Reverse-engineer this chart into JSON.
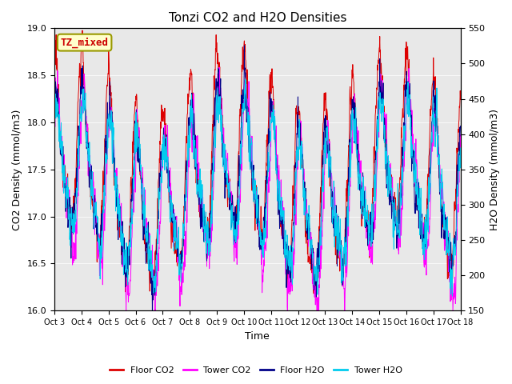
{
  "title": "Tonzi CO2 and H2O Densities",
  "xlabel": "Time",
  "ylabel_left": "CO2 Density (mmol/m3)",
  "ylabel_right": "H2O Density (mmol/m3)",
  "ylim_left": [
    16.0,
    19.0
  ],
  "ylim_right": [
    150,
    550
  ],
  "xtick_labels": [
    "Oct 3",
    "Oct 4",
    "Oct 5",
    "Oct 6",
    "Oct 7",
    "Oct 8",
    "Oct 9",
    "Oct 10",
    "Oct 11",
    "Oct 12",
    "Oct 13",
    "Oct 14",
    "Oct 15",
    "Oct 16",
    "Oct 17",
    "Oct 18"
  ],
  "annotation_text": "TZ_mixed",
  "annotation_fgcolor": "#cc0000",
  "annotation_bgcolor": "#ffffcc",
  "annotation_edgecolor": "#999900",
  "floor_co2_color": "#dd0000",
  "tower_co2_color": "#ff00ff",
  "floor_h2o_color": "#000088",
  "tower_h2o_color": "#00ccee",
  "legend_labels": [
    "Floor CO2",
    "Tower CO2",
    "Floor H2O",
    "Tower H2O"
  ],
  "plot_bg_color": "#e8e8e8",
  "fig_bg_color": "#ffffff",
  "yticks_left": [
    16.0,
    16.5,
    17.0,
    17.5,
    18.0,
    18.5,
    19.0
  ],
  "yticks_right": [
    150,
    200,
    250,
    300,
    350,
    400,
    450,
    500,
    550
  ]
}
